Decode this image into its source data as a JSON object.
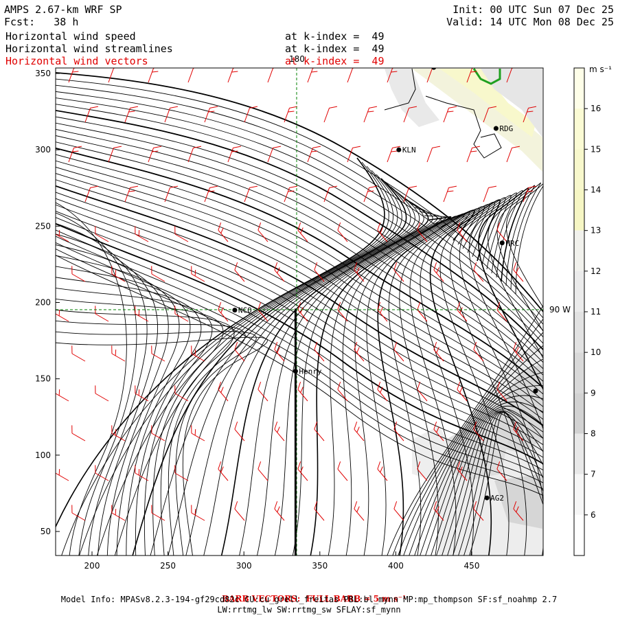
{
  "header": {
    "model": "AMPS 2.67-km WRF SP",
    "forecast": "Fcst:   38 h",
    "init": "Init: 00 UTC Sun 07 Dec 25",
    "valid": "Valid: 14 UTC Mon 08 Dec 25"
  },
  "fields": [
    {
      "name": "Horizontal wind speed",
      "level": "at k-index =  49",
      "color": "#000000"
    },
    {
      "name": "Horizontal wind streamlines",
      "level": "at k-index =  49",
      "color": "#000000"
    },
    {
      "name": "Horizontal wind vectors",
      "level": "at k-index =  49",
      "color": "#e00000"
    }
  ],
  "map": {
    "x_ticks": [
      "200",
      "250",
      "300",
      "350",
      "400",
      "450"
    ],
    "y_ticks": [
      "350",
      "300",
      "250",
      "200",
      "150",
      "100",
      "50"
    ],
    "meridian_label": "180",
    "parallel_label": "90 W",
    "stations": [
      {
        "name": "NCO",
        "x": 294,
        "y": 195
      },
      {
        "name": "Henry",
        "x": 334,
        "y": 155
      },
      {
        "name": "KLN",
        "x": 402,
        "y": 300
      },
      {
        "name": "HRC",
        "x": 470,
        "y": 239
      },
      {
        "name": "RDG",
        "x": 466,
        "y": 314
      },
      {
        "name": "AG2",
        "x": 460,
        "y": 72
      },
      {
        "name": "",
        "x": 425,
        "y": 354
      },
      {
        "name": "",
        "x": 492,
        "y": 142
      }
    ],
    "section_line": {
      "x": 334,
      "y_from": 33,
      "y_to": 196
    }
  },
  "colorbar": {
    "units": "m s⁻¹",
    "labels": [
      "16",
      "15",
      "14",
      "13",
      "12",
      "11",
      "10",
      "9",
      "8",
      "7",
      "6"
    ],
    "colors": [
      "#fefee8",
      "#fbfbd4",
      "#f8f8cc",
      "#f6f6c4",
      "#f1f1ec",
      "#ebebeb",
      "#e2e2e2",
      "#d9d9d9",
      "#d2d2d2",
      "#e8e8e8",
      "#f6f6f6",
      "#ffffff"
    ]
  },
  "footer": {
    "barb": "BARB VECTORS:  FULL BARB = 5 m s⁻¹",
    "model_info": "Model Info: MPASv8.2.3-194-gf29cd82c CU:cu_grell_freitas PBL:bl_mynn MP:mp_thompson SF:sf_noahmp 2.7",
    "model_info2": "LW:rrtmg_lw SW:rrtmg_sw SFLAY:sf_mynn"
  }
}
